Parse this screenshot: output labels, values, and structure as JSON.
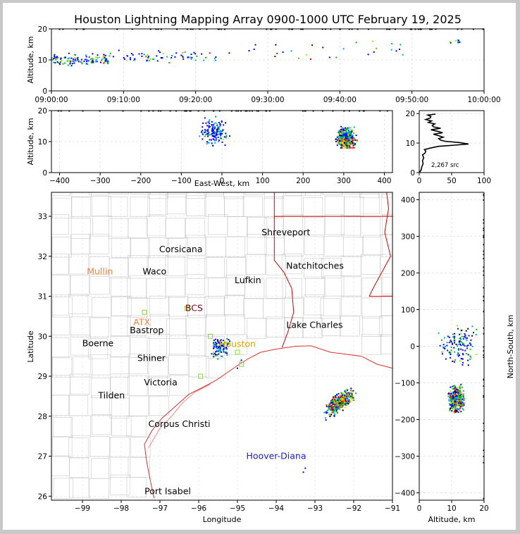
{
  "chart_data": [
    {
      "type": "scatter",
      "name": "altitude-vs-time",
      "title": "Houston Lightning Mapping Array 0900-1000 UTC February 19, 2025",
      "ylabel": "Altitude, km",
      "xlim": [
        "09:00:00",
        "10:00:00"
      ],
      "ylim": [
        0,
        20
      ],
      "x_ticks": [
        "09:00:00",
        "09:10:00",
        "09:20:00",
        "09:30:00",
        "09:40:00",
        "09:50:00",
        "10:00:00"
      ],
      "y_ticks": [
        0,
        10,
        20
      ],
      "grid": true
    },
    {
      "type": "scatter",
      "name": "altitude-vs-east-west",
      "xlabel": "East-West, km",
      "ylabel": "Altitude, km",
      "xlim": [
        -420,
        420
      ],
      "ylim": [
        0,
        20
      ],
      "x_ticks": [
        -400,
        -300,
        -200,
        -100,
        0,
        100,
        200,
        300,
        400
      ],
      "y_ticks": [
        0,
        10,
        20
      ],
      "clusters": [
        {
          "x_range": [
            -70,
            40
          ],
          "alt_range": [
            3,
            20
          ]
        },
        {
          "x_range": [
            270,
            340
          ],
          "alt_range": [
            8,
            19
          ]
        }
      ]
    },
    {
      "type": "line",
      "name": "altitude-histogram",
      "annotation": "2,267 src",
      "xlim": [
        0,
        100
      ],
      "ylim": [
        0,
        21
      ],
      "x_ticks": [
        0,
        50,
        100
      ],
      "y_ticks": [
        0,
        10,
        20
      ],
      "counts": [
        [
          1,
          0.2
        ],
        [
          3,
          1
        ],
        [
          4,
          2
        ],
        [
          6,
          3
        ],
        [
          5,
          4
        ],
        [
          7,
          5
        ],
        [
          5,
          6
        ],
        [
          9,
          6.6
        ],
        [
          10,
          7.3
        ],
        [
          8,
          7.8
        ],
        [
          17,
          8.3
        ],
        [
          30,
          8.9
        ],
        [
          55,
          9.3
        ],
        [
          76,
          9.7
        ],
        [
          62,
          10.2
        ],
        [
          40,
          10.6
        ],
        [
          33,
          11
        ],
        [
          30,
          11.5
        ],
        [
          37,
          12
        ],
        [
          30,
          12.5
        ],
        [
          22,
          13
        ],
        [
          36,
          13.5
        ],
        [
          28,
          14
        ],
        [
          18,
          14.5
        ],
        [
          33,
          15
        ],
        [
          22,
          15.5
        ],
        [
          20,
          16
        ],
        [
          24,
          16.5
        ],
        [
          14,
          17
        ],
        [
          19,
          17.5
        ],
        [
          10,
          18
        ],
        [
          17,
          18.5
        ],
        [
          18,
          19
        ],
        [
          13,
          19.5
        ],
        [
          25,
          19.8
        ]
      ]
    },
    {
      "type": "scatter",
      "name": "plan-view-map",
      "xlabel": "Longitude",
      "ylabel": "Latitude",
      "xlim": [
        -99.8,
        -91
      ],
      "ylim": [
        25.9,
        33.6
      ],
      "x_ticks": [
        -99,
        -98,
        -97,
        -96,
        -95,
        -94,
        -93,
        -92,
        -91
      ],
      "y_ticks": [
        26,
        27,
        28,
        29,
        30,
        31,
        32,
        33
      ],
      "cities": [
        {
          "label": "Shreveport",
          "lon": -93.75,
          "lat": 32.6,
          "color": "#000000"
        },
        {
          "label": "Corsicana",
          "lon": -96.46,
          "lat": 32.17,
          "color": "#000000"
        },
        {
          "label": "Natchitoches",
          "lon": -93.0,
          "lat": 31.76,
          "color": "#000000"
        },
        {
          "label": "Mullin",
          "lon": -98.55,
          "lat": 31.62,
          "color": "#f08040"
        },
        {
          "label": "Waco",
          "lon": -97.14,
          "lat": 31.62,
          "color": "#000000"
        },
        {
          "label": "Lufkin",
          "lon": -94.73,
          "lat": 31.4,
          "color": "#000000"
        },
        {
          "label": "BCS",
          "lon": -96.12,
          "lat": 30.7,
          "color": "#800020"
        },
        {
          "label": "ATX",
          "lon": -97.47,
          "lat": 30.35,
          "color": "#f08040"
        },
        {
          "label": "Bastrop",
          "lon": -97.34,
          "lat": 30.15,
          "color": "#000000"
        },
        {
          "label": "Lake Charles",
          "lon": -93.01,
          "lat": 30.28,
          "color": "#000000"
        },
        {
          "label": "Boerne",
          "lon": -98.6,
          "lat": 29.82,
          "color": "#000000"
        },
        {
          "label": "Houston",
          "lon": -95.0,
          "lat": 29.8,
          "color": "#e0a000"
        },
        {
          "label": "Shiner",
          "lon": -97.22,
          "lat": 29.45,
          "color": "#000000"
        },
        {
          "label": "Victoria",
          "lon": -96.98,
          "lat": 28.84,
          "color": "#000000"
        },
        {
          "label": "Tilden",
          "lon": -98.25,
          "lat": 28.52,
          "color": "#000000"
        },
        {
          "label": "Corpus Christi",
          "lon": -96.5,
          "lat": 27.8,
          "color": "#000000"
        },
        {
          "label": "Hoover-Diana",
          "lon": -94.0,
          "lat": 27.0,
          "color": "#2020d0"
        },
        {
          "label": "Port Isabel",
          "lon": -96.8,
          "lat": 26.12,
          "color": "#000000"
        }
      ]
    },
    {
      "type": "scatter",
      "name": "north-south-vs-altitude",
      "xlabel": "Altitude, km",
      "ylabel": "North-South, km",
      "xlim": [
        0,
        20
      ],
      "ylim": [
        -420,
        420
      ],
      "x_ticks": [
        0,
        10,
        20
      ],
      "y_ticks": [
        -400,
        -300,
        -200,
        -100,
        0,
        100,
        200,
        300,
        400
      ]
    }
  ],
  "colors": {
    "source_palette": [
      "#0000ff",
      "#00a0ff",
      "#00c000",
      "#80ff00",
      "#ffd000",
      "#ff8000",
      "#ff0000",
      "#000000",
      "#ff00ff"
    ],
    "coast": "#e03030",
    "state_line": "#d00000",
    "county_line": "#c8c8c8"
  }
}
